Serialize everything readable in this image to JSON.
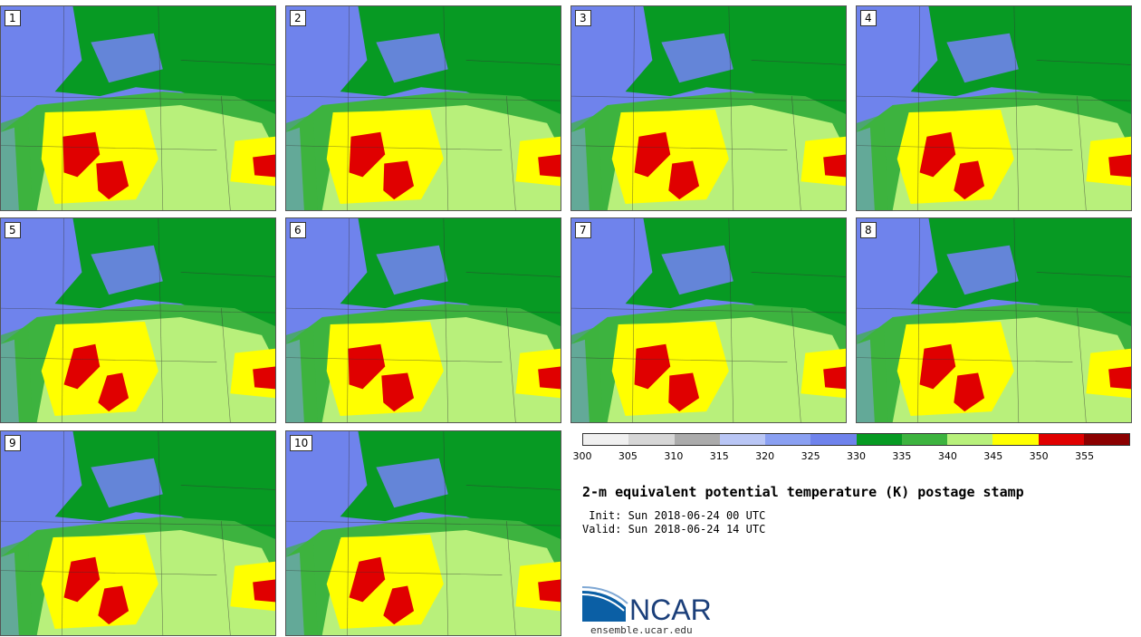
{
  "panels": [
    {
      "label": "1"
    },
    {
      "label": "2"
    },
    {
      "label": "3"
    },
    {
      "label": "4"
    },
    {
      "label": "5"
    },
    {
      "label": "6"
    },
    {
      "label": "7"
    },
    {
      "label": "8"
    },
    {
      "label": "9"
    },
    {
      "label": "10"
    }
  ],
  "colorbar": {
    "ticks": [
      "300",
      "305",
      "310",
      "315",
      "320",
      "325",
      "330",
      "335",
      "340",
      "345",
      "350",
      "355"
    ],
    "colors": [
      "#f0f0f0",
      "#d6d6d6",
      "#ababab",
      "#b9c6f5",
      "#8aa0f2",
      "#6f83ec",
      "#079a23",
      "#3db33f",
      "#b8f07b",
      "#ffff00",
      "#e00000",
      "#8b0000"
    ]
  },
  "title": "2-m equivalent potential temperature (K) postage stamp",
  "init_line": " Init: Sun 2018-06-24 00 UTC",
  "valid_line": "Valid: Sun 2018-06-24 14 UTC",
  "logo": {
    "text": "NCAR",
    "url": "ensemble.ucar.edu"
  }
}
